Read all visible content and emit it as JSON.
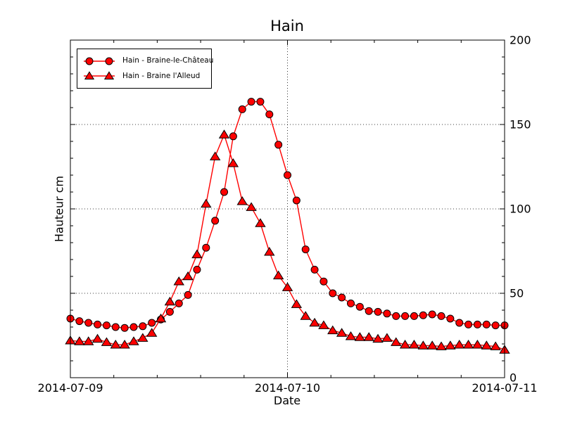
{
  "figure": {
    "background_color": "#ffffff",
    "text_color": "#000000"
  },
  "chart_data": {
    "type": "line",
    "title": "Hain",
    "xlabel": "Date",
    "ylabel": "Hauteur cm",
    "ylim": [
      0,
      200
    ],
    "xlim_hours": [
      0,
      48
    ],
    "grid": "dotted black lines at major ticks (y: 50/100/150, x: 2014-07-10)",
    "legend_position": "upper left",
    "y_ticks": [
      0,
      50,
      100,
      150,
      200
    ],
    "y_minor_step": 10,
    "x_minor_step_hours": 4.8,
    "x_tick_labels": [
      {
        "hour": 0,
        "label": "2014-07-09"
      },
      {
        "hour": 24,
        "label": "2014-07-10"
      },
      {
        "hour": 48,
        "label": "2014-07-11"
      }
    ],
    "x_hours": [
      0,
      1,
      2,
      3,
      4,
      5,
      6,
      7,
      8,
      9,
      10,
      11,
      12,
      13,
      14,
      15,
      16,
      17,
      18,
      19,
      20,
      21,
      22,
      23,
      24,
      25,
      26,
      27,
      28,
      29,
      30,
      31,
      32,
      33,
      34,
      35,
      36,
      37,
      38,
      39,
      40,
      41,
      42,
      43,
      44,
      45,
      46,
      47,
      48
    ],
    "series": [
      {
        "name": "Hain - Braine-le-Château",
        "marker": "circle",
        "color": "#ff0000",
        "edge_color": "#000000",
        "values": [
          35,
          33.5,
          32.5,
          31.5,
          31,
          30,
          29.5,
          30,
          30.5,
          32.5,
          34.5,
          39,
          44,
          49,
          64,
          77,
          93,
          110,
          143,
          159,
          163.5,
          163.5,
          156,
          138,
          120,
          105,
          76,
          64,
          57,
          50,
          47.5,
          44,
          42,
          39.5,
          39,
          38,
          36.5,
          36.5,
          36.5,
          37,
          37.5,
          36.5,
          35,
          32.5,
          31.5,
          31.5,
          31.5,
          31,
          31
        ]
      },
      {
        "name": "Hain - Braine l'Alleud",
        "marker": "triangle",
        "color": "#ff0000",
        "edge_color": "#000000",
        "values": [
          22,
          21.5,
          21.5,
          23,
          21,
          19.5,
          19.5,
          21.5,
          23.5,
          26.5,
          35,
          45,
          57,
          60,
          73,
          103,
          131,
          144,
          127,
          104.5,
          101,
          91.5,
          74.5,
          60.5,
          53.5,
          43.5,
          36.5,
          32.5,
          31,
          28,
          26.5,
          24.5,
          24,
          24,
          23,
          23.5,
          21,
          19.5,
          19.5,
          19,
          19,
          18.5,
          19,
          19.5,
          19.5,
          19.5,
          19,
          18.5,
          16.5
        ]
      }
    ]
  }
}
